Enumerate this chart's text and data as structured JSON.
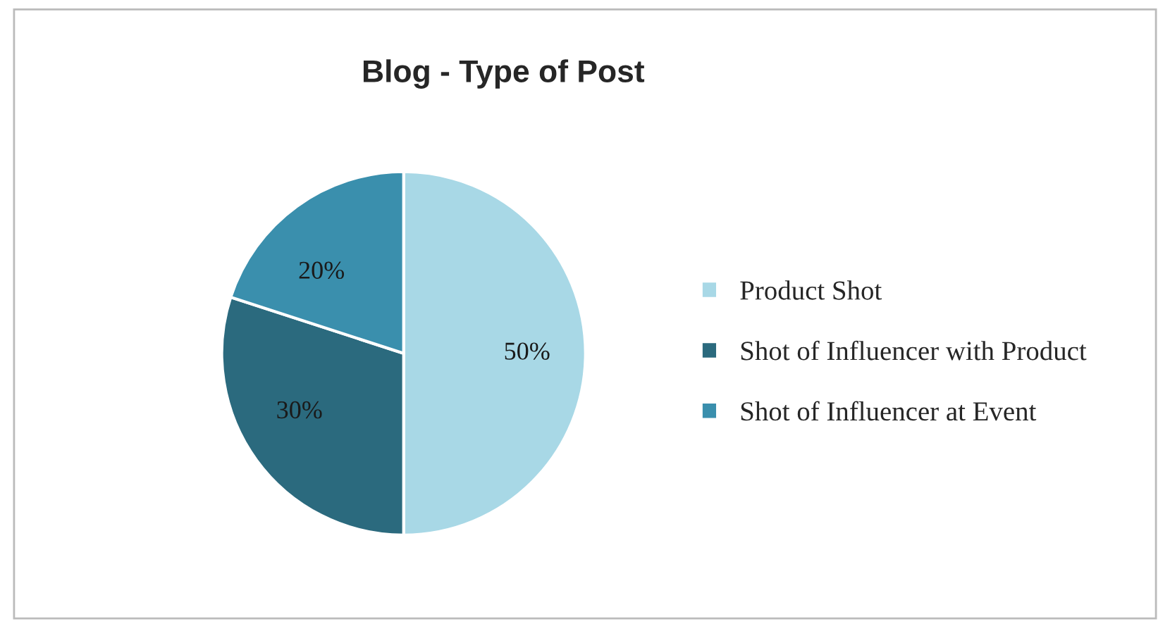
{
  "chart_data": {
    "type": "pie",
    "title": "Blog - Type of Post",
    "categories": [
      "Product Shot",
      "Shot of Influencer with Product",
      "Shot of Influencer at Event"
    ],
    "values": [
      50,
      30,
      20
    ],
    "value_labels": [
      "50%",
      "30%",
      "20%"
    ],
    "colors": [
      "#a8d8e6",
      "#2b6a7e",
      "#3a8fad"
    ],
    "legend": "right"
  }
}
